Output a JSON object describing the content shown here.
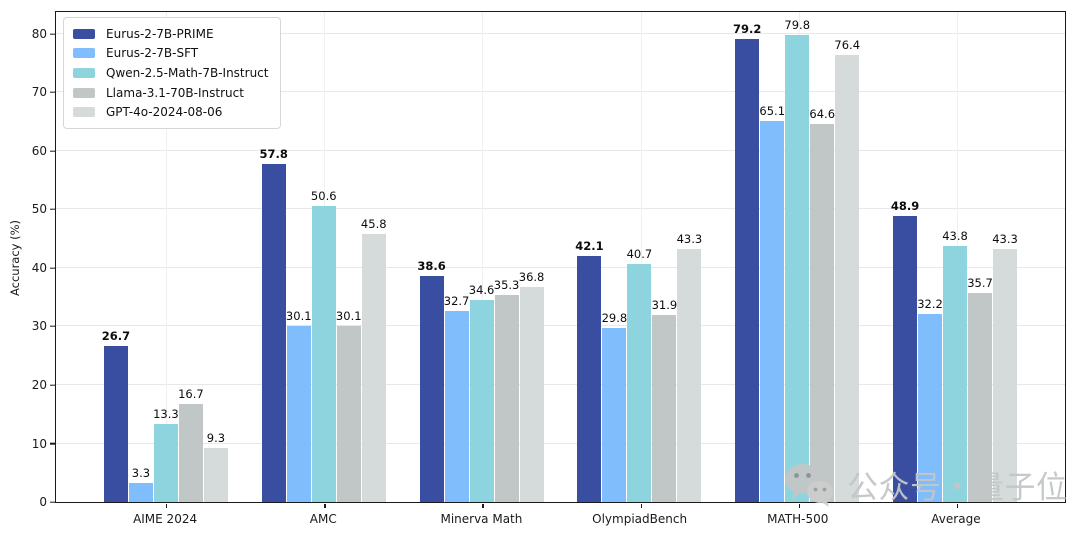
{
  "chart_data": {
    "type": "bar",
    "title": "",
    "xlabel": "",
    "ylabel": "Accuracy (%)",
    "ylim": [
      0,
      83.75
    ],
    "yticks": [
      0,
      10,
      20,
      30,
      40,
      50,
      60,
      70,
      80
    ],
    "grid": true,
    "legend_position": "upper-left",
    "categories": [
      "AIME 2024",
      "AMC",
      "Minerva Math",
      "OlympiadBench",
      "MATH-500",
      "Average"
    ],
    "series": [
      {
        "name": "Eurus-2-7B-PRIME",
        "color": "#394ea1",
        "bold_labels": true,
        "values": [
          26.7,
          57.8,
          38.6,
          42.1,
          79.2,
          48.9
        ]
      },
      {
        "name": "Eurus-2-7B-SFT",
        "color": "#7fbdfc",
        "bold_labels": false,
        "values": [
          3.3,
          30.1,
          32.7,
          29.8,
          65.1,
          32.2
        ]
      },
      {
        "name": "Qwen-2.5-Math-7B-Instruct",
        "color": "#8ed4de",
        "bold_labels": false,
        "values": [
          13.3,
          50.6,
          34.6,
          40.7,
          79.8,
          43.8
        ]
      },
      {
        "name": "Llama-3.1-70B-Instruct",
        "color": "#c1c6c7",
        "bold_labels": false,
        "values": [
          16.7,
          30.1,
          35.3,
          31.9,
          64.6,
          35.7
        ]
      },
      {
        "name": "GPT-4o-2024-08-06",
        "color": "#d5dbdb",
        "bold_labels": false,
        "values": [
          9.3,
          45.8,
          36.8,
          43.3,
          76.4,
          43.3
        ]
      }
    ]
  },
  "watermark": {
    "icon": "wechat-icon",
    "text": "公众号・量子位",
    "color": "#c3c6c6"
  }
}
